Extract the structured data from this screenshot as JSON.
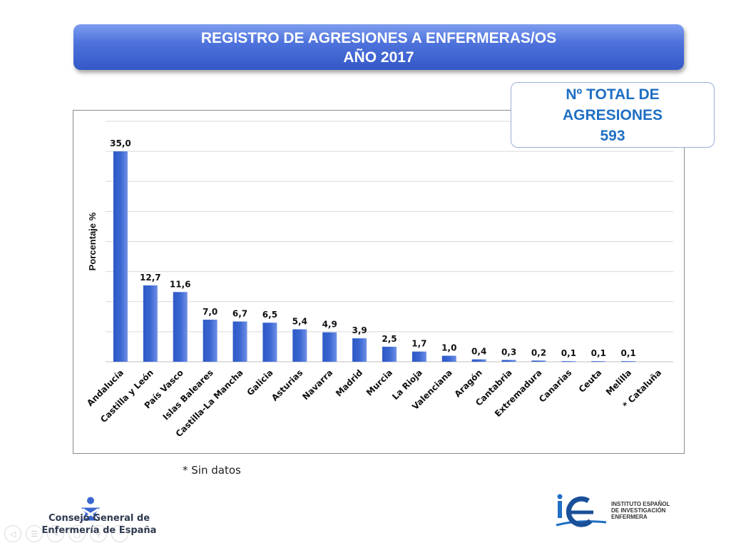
{
  "header": {
    "title_line1": "REGISTRO DE AGRESIONES A ENFERMERAS/OS",
    "title_line2": "AÑO 2017"
  },
  "total_box": {
    "line1": "Nº TOTAL DE",
    "line2": "AGRESIONES",
    "value": "593"
  },
  "footnote": "* Sin datos",
  "logos": {
    "cge_line1": "Consejo General de",
    "cge_line2": "Enfermería de España",
    "ie_line1": "INSTITUTO ESPAÑOL",
    "ie_line2": "DE INVESTIGACIÓN",
    "ie_line3": "ENFERMERA"
  },
  "colors": {
    "bar": "#3a66d1",
    "title_banner": "#4f73dc",
    "total_text": "#1f6fc4"
  },
  "chart_data": {
    "type": "bar",
    "ylabel": "Porcentaje %",
    "xlabel": "",
    "ylim": [
      0,
      40
    ],
    "grid": true,
    "categories": [
      "Andalucía",
      "Castilla y León",
      "País Vasco",
      "Islas Baleares",
      "Castilla-La Mancha",
      "Galicia",
      "Asturias",
      "Navarra",
      "Madrid",
      "Murcia",
      "La Rioja",
      "Valenciana",
      "Aragón",
      "Cantabria",
      "Extremadura",
      "Canarias",
      "Ceuta",
      "Melilla",
      "* Cataluña"
    ],
    "values": [
      35.0,
      12.7,
      11.6,
      7.0,
      6.7,
      6.5,
      5.4,
      4.9,
      3.9,
      2.5,
      1.7,
      1.0,
      0.4,
      0.3,
      0.2,
      0.1,
      0.1,
      0.1,
      null
    ],
    "data_labels": [
      "35,0",
      "12,7",
      "11,6",
      "7,0",
      "6,7",
      "6,5",
      "5,4",
      "4,9",
      "3,9",
      "2,5",
      "1,7",
      "1,0",
      "0,4",
      "0,3",
      "0,2",
      "0,1",
      "0,1",
      "0,1",
      ""
    ]
  }
}
